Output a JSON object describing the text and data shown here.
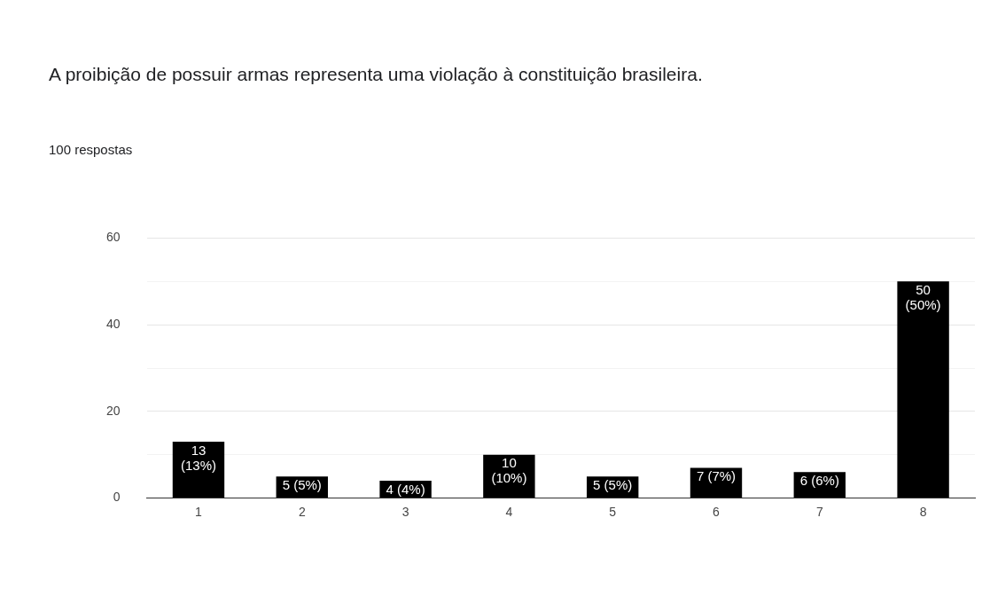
{
  "chart_data": {
    "type": "bar",
    "title": "A proibição de possuir armas representa uma violação à constituição brasileira.",
    "subtitle": "100 respostas",
    "categories": [
      "1",
      "2",
      "3",
      "4",
      "5",
      "6",
      "7",
      "8"
    ],
    "values": [
      13,
      5,
      4,
      10,
      5,
      7,
      6,
      50
    ],
    "color": "#000000",
    "value_labels": [
      "13 (13%)",
      "5 (5%)",
      "4 (4%)",
      "10 (10%)",
      "5 (5%)",
      "7 (7%)",
      "6 (6%)",
      "50 (50%)"
    ],
    "ylim": [
      0,
      60
    ],
    "yticks": [
      0,
      {
        "value": 10,
        "label": null
      },
      20,
      {
        "value": 30,
        "label": null
      },
      40,
      {
        "value": 50,
        "label": null
      },
      60
    ],
    "grid": "y",
    "legend": false
  }
}
